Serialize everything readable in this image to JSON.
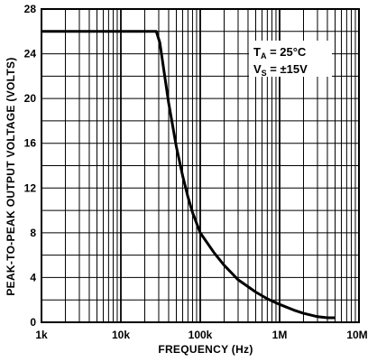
{
  "chart_data": {
    "type": "line",
    "xlabel": "FREQUENCY (Hz)",
    "ylabel": "PEAK-TO-PEAK OUTPUT VOLTAGE (VOLTS)",
    "x_scale": "log",
    "xlim": [
      1000,
      10000000
    ],
    "ylim": [
      0,
      28
    ],
    "x_ticks": [
      1000,
      10000,
      100000,
      1000000,
      10000000
    ],
    "x_tick_labels": [
      "1k",
      "10k",
      "100k",
      "1M",
      "10M"
    ],
    "y_ticks": [
      0,
      4,
      8,
      12,
      16,
      20,
      24,
      28
    ],
    "y_tick_labels": [
      "0",
      "4",
      "8",
      "12",
      "16",
      "20",
      "24",
      "28"
    ],
    "grid": true,
    "annotation": {
      "line1": {
        "main": "T",
        "sub": "A",
        "rest": " = 25°C"
      },
      "line2": {
        "main": "V",
        "sub": "S",
        "rest": " = ±15V"
      }
    },
    "series": [
      {
        "color": "#000000",
        "x": [
          1000,
          10000,
          28000,
          31000,
          35000,
          40000,
          50000,
          60000,
          70000,
          80000,
          100000,
          150000,
          200000,
          300000,
          500000,
          700000,
          1000000,
          1500000,
          2000000,
          3000000,
          4000000,
          5000000
        ],
        "y": [
          26,
          26,
          26,
          25,
          22.4,
          19.6,
          15.7,
          13.1,
          11.2,
          9.8,
          8.0,
          6.2,
          5.1,
          3.8,
          2.7,
          2.1,
          1.6,
          1.1,
          0.8,
          0.5,
          0.4,
          0.4
        ]
      }
    ]
  }
}
